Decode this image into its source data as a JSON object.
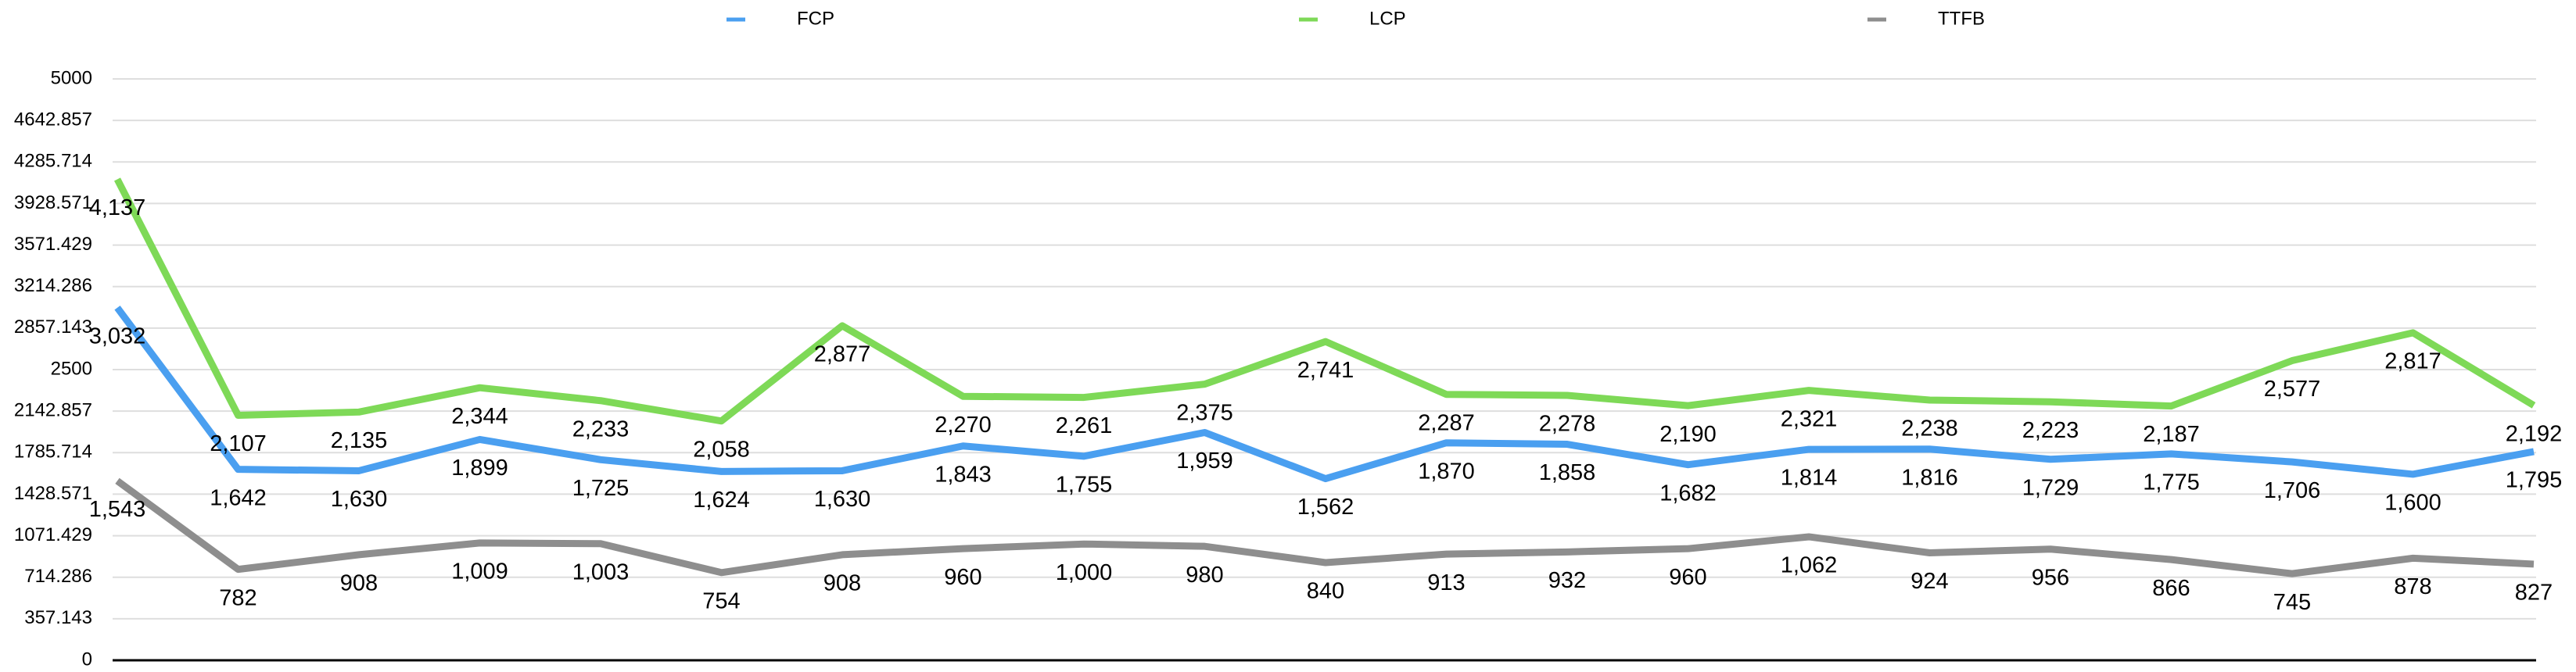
{
  "chart_data": {
    "type": "line",
    "categories": [
      null,
      null,
      null,
      null,
      null,
      null,
      null,
      null,
      null,
      null,
      null,
      null,
      null,
      null,
      null,
      null,
      null,
      null,
      null,
      null,
      null
    ],
    "series": [
      {
        "name": "FCP",
        "color": "#4a9ff0",
        "values": [
          3032,
          1642,
          1630,
          1899,
          1725,
          1624,
          1630,
          1843,
          1755,
          1959,
          1562,
          1870,
          1858,
          1682,
          1814,
          1816,
          1729,
          1775,
          1706,
          1600,
          1795
        ],
        "value_labels": [
          "3,032",
          "1,642",
          "1,630",
          "1,899",
          "1,725",
          "1,624",
          "1,630",
          "1,843",
          "1,755",
          "1,959",
          "1,562",
          "1,870",
          "1,858",
          "1,682",
          "1,814",
          "1,816",
          "1,729",
          "1,775",
          "1,706",
          "1,600",
          "1,795"
        ]
      },
      {
        "name": "LCP",
        "color": "#7ed957",
        "values": [
          4137,
          2107,
          2135,
          2344,
          2233,
          2058,
          2877,
          2270,
          2261,
          2375,
          2741,
          2287,
          2278,
          2190,
          2321,
          2238,
          2223,
          2187,
          2577,
          2817,
          2192
        ],
        "value_labels": [
          "4,137",
          "2,107",
          "2,135",
          "2,344",
          "2,233",
          "2,058",
          "2,877",
          "2,270",
          "2,261",
          "2,375",
          "2,741",
          "2,287",
          "2,278",
          "2,190",
          "2,321",
          "2,238",
          "2,223",
          "2,187",
          "2,577",
          "2,817",
          "2,192"
        ]
      },
      {
        "name": "TTFB",
        "color": "#8e8e8e",
        "values": [
          1543,
          782,
          908,
          1009,
          1003,
          754,
          908,
          960,
          1000,
          980,
          840,
          913,
          932,
          960,
          1062,
          924,
          956,
          866,
          745,
          878,
          827
        ],
        "value_labels": [
          "1,543",
          "782",
          "908",
          "1,009",
          "1,003",
          "754",
          "908",
          "960",
          "1,000",
          "980",
          "840",
          "913",
          "932",
          "960",
          "1,062",
          "924",
          "956",
          "866",
          "745",
          "878",
          "827"
        ]
      }
    ],
    "ylim": [
      0,
      5000
    ],
    "yticks": [
      0,
      357.143,
      714.286,
      1071.429,
      1428.571,
      1785.714,
      2142.857,
      2500,
      2857.143,
      3214.286,
      3571.429,
      3928.571,
      4285.714,
      4642.857,
      5000
    ],
    "grid": true,
    "legend": "top"
  }
}
